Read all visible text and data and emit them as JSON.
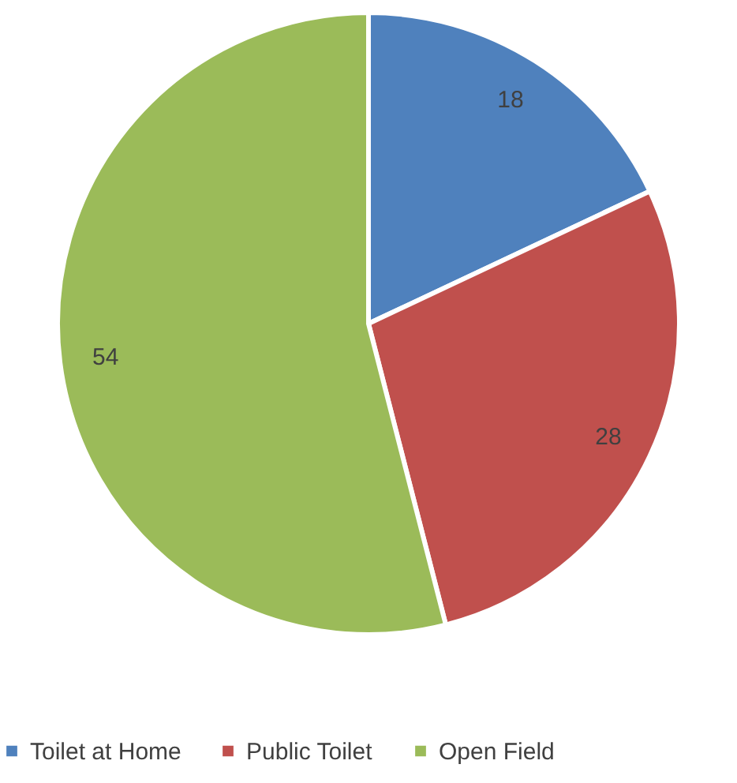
{
  "chart_data": {
    "type": "pie",
    "categories": [
      "Toilet at Home",
      "Public Toilet",
      "Open Field"
    ],
    "values": [
      18,
      28,
      54
    ],
    "colors": [
      "#4f81bd",
      "#c0504d",
      "#9bbb59"
    ],
    "data_labels": true,
    "legend": "bottom"
  }
}
